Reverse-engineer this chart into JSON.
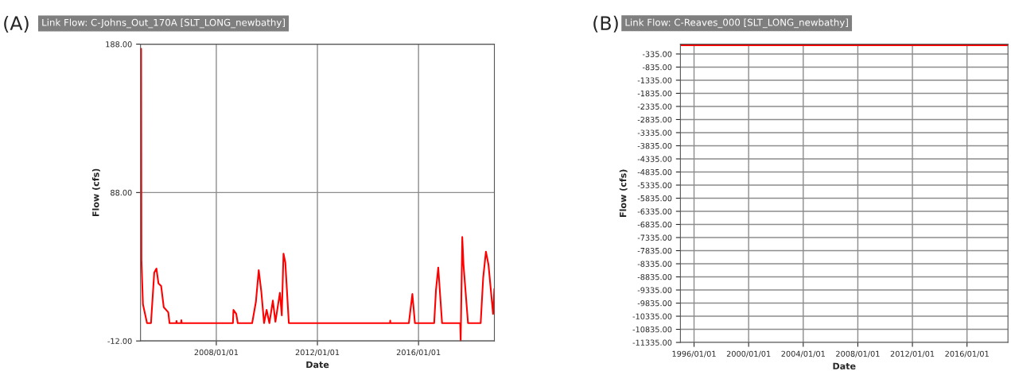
{
  "chart_data": [
    {
      "type": "line",
      "title": "Link Flow: C-Johns_Out_170A [SLT_LONG_newbathy]",
      "xlabel": "Date",
      "ylabel": "Flow (cfs)",
      "annotations": [
        "(A)"
      ],
      "x": [
        "2005-01-10",
        "2005-01-14",
        "2005-02-05",
        "2005-04-05",
        "2005-06-01",
        "2005-07-18",
        "2005-08-19",
        "2005-09-17",
        "2005-10-26",
        "2005-12-03",
        "2006-02-06",
        "2006-02-24",
        "2006-06-01",
        "2006-06-05",
        "2006-06-10",
        "2006-08-10",
        "2006-08-14",
        "2006-08-19",
        "2008-08-28",
        "2008-09-05",
        "2008-10-15",
        "2008-11-06",
        "2009-06-02",
        "2009-07-26",
        "2009-09-05",
        "2009-10-12",
        "2009-11-21",
        "2009-12-28",
        "2010-02-06",
        "2010-03-28",
        "2010-05-04",
        "2010-07-08",
        "2010-08-04",
        "2010-08-29",
        "2010-09-24",
        "2010-11-14",
        "2014-11-16",
        "2014-11-18",
        "2014-11-21",
        "2015-08-14",
        "2015-10-04",
        "2015-11-10",
        "2016-08-14",
        "2016-09-09",
        "2016-10-12",
        "2016-12-06",
        "2017-08-25",
        "2017-09-01",
        "2017-09-24",
        "2017-10-12",
        "2017-12-16",
        "2018-06-17",
        "2018-07-23",
        "2018-09-01",
        "2018-10-08",
        "2018-12-13",
        "2019-01-01"
      ],
      "series": [
        {
          "color": "#ff0000",
          "values": [
            185,
            43,
            12.7,
            0,
            0,
            34,
            36.8,
            26.8,
            25,
            10.7,
            7.3,
            0,
            0,
            1.5,
            0,
            0,
            2,
            0,
            0,
            8.9,
            6.2,
            0,
            0,
            14.3,
            35.7,
            21.4,
            0,
            9,
            0,
            15.2,
            0.9,
            20.5,
            5.3,
            46.8,
            41,
            0,
            0,
            1.7,
            0,
            0,
            19.6,
            0,
            0,
            22.3,
            37.5,
            0,
            0,
            -12,
            58,
            39.3,
            0,
            0,
            30.4,
            48.2,
            39.3,
            6.2,
            23.2
          ]
        }
      ],
      "xlim": [
        "2005-01-01",
        "2019-01-01"
      ],
      "ylim": [
        -12,
        188
      ],
      "xticks": [
        {
          "value": "2008-01-01",
          "label": "2008/01/01"
        },
        {
          "value": "2012-01-01",
          "label": "2012/01/01"
        },
        {
          "value": "2016-01-01",
          "label": "2016/01/01"
        }
      ],
      "yticks": [
        {
          "value": -12,
          "label": "-12.00"
        },
        {
          "value": 88,
          "label": "88.00"
        },
        {
          "value": 188,
          "label": "188.00"
        }
      ],
      "grid": true,
      "marker": "none",
      "line_style": "solid"
    },
    {
      "type": "line",
      "title": "Link Flow: C-Reaves_000 [SLT_LONG_newbathy]",
      "xlabel": "Date",
      "ylabel": "Flow (cfs)",
      "annotations": [
        "(B)"
      ],
      "x": [
        "1995-01-01",
        "2000-01-01",
        "2005-01-01",
        "2010-01-01",
        "2015-01-01",
        "2019-01-01"
      ],
      "series": [
        {
          "color": "#ff0000",
          "values": [
            0,
            0,
            0,
            0,
            0,
            0
          ]
        }
      ],
      "xlim": [
        "1995-01-01",
        "2019-01-01"
      ],
      "ylim": [
        -11335,
        40
      ],
      "xticks": [
        {
          "value": "1996-01-01",
          "label": "1996/01/01"
        },
        {
          "value": "2000-01-01",
          "label": "2000/01/01"
        },
        {
          "value": "2004-01-01",
          "label": "2004/01/01"
        },
        {
          "value": "2008-01-01",
          "label": "2008/01/01"
        },
        {
          "value": "2012-01-01",
          "label": "2012/01/01"
        },
        {
          "value": "2016-01-01",
          "label": "2016/01/01"
        }
      ],
      "yticks": [
        {
          "value": -335,
          "label": "-335.00"
        },
        {
          "value": -835,
          "label": "-835.00"
        },
        {
          "value": -1335,
          "label": "-1335.00"
        },
        {
          "value": -1835,
          "label": "-1835.00"
        },
        {
          "value": -2335,
          "label": "-2335.00"
        },
        {
          "value": -2835,
          "label": "-2835.00"
        },
        {
          "value": -3335,
          "label": "-3335.00"
        },
        {
          "value": -3835,
          "label": "-3835.00"
        },
        {
          "value": -4335,
          "label": "-4335.00"
        },
        {
          "value": -4835,
          "label": "-4835.00"
        },
        {
          "value": -5335,
          "label": "-5335.00"
        },
        {
          "value": -5835,
          "label": "-5835.00"
        },
        {
          "value": -6335,
          "label": "-6335.00"
        },
        {
          "value": -6835,
          "label": "-6835.00"
        },
        {
          "value": -7335,
          "label": "-7335.00"
        },
        {
          "value": -7835,
          "label": "-7835.00"
        },
        {
          "value": -8335,
          "label": "-8335.00"
        },
        {
          "value": -8835,
          "label": "-8835.00"
        },
        {
          "value": -9335,
          "label": "-9335.00"
        },
        {
          "value": -9835,
          "label": "-9835.00"
        },
        {
          "value": -10335,
          "label": "-10335.00"
        },
        {
          "value": -10835,
          "label": "-10835.00"
        },
        {
          "value": -11335,
          "label": "-11335.00"
        }
      ],
      "grid": true,
      "marker": "none",
      "line_style": "solid"
    }
  ]
}
